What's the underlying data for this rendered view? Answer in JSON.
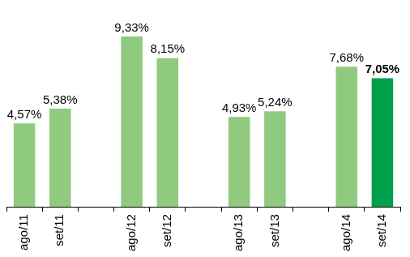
{
  "chart_data": {
    "type": "bar",
    "categories": [
      "ago/11",
      "set/11",
      null,
      "ago/12",
      "set/12",
      null,
      "ago/13",
      "set/13",
      null,
      "ago/14",
      "set/14"
    ],
    "values": [
      4.57,
      5.38,
      null,
      9.33,
      8.15,
      null,
      4.93,
      5.24,
      null,
      7.68,
      7.05
    ],
    "value_labels": [
      "4,57%",
      "5,38%",
      null,
      "9,33%",
      "8,15%",
      null,
      "4,93%",
      "5,24%",
      null,
      "7,68%",
      "7,05%"
    ],
    "colors": [
      "#8fca7e",
      "#8fca7e",
      "#8fca7e",
      "#8fca7e",
      "#8fca7e",
      "#8fca7e",
      "#8fca7e",
      "#8fca7e",
      "#8fca7e",
      "#8fca7e",
      "#00a04b"
    ],
    "ylim": [
      0,
      10
    ],
    "grid": false,
    "data_labels": true,
    "tick_labels": "x"
  }
}
